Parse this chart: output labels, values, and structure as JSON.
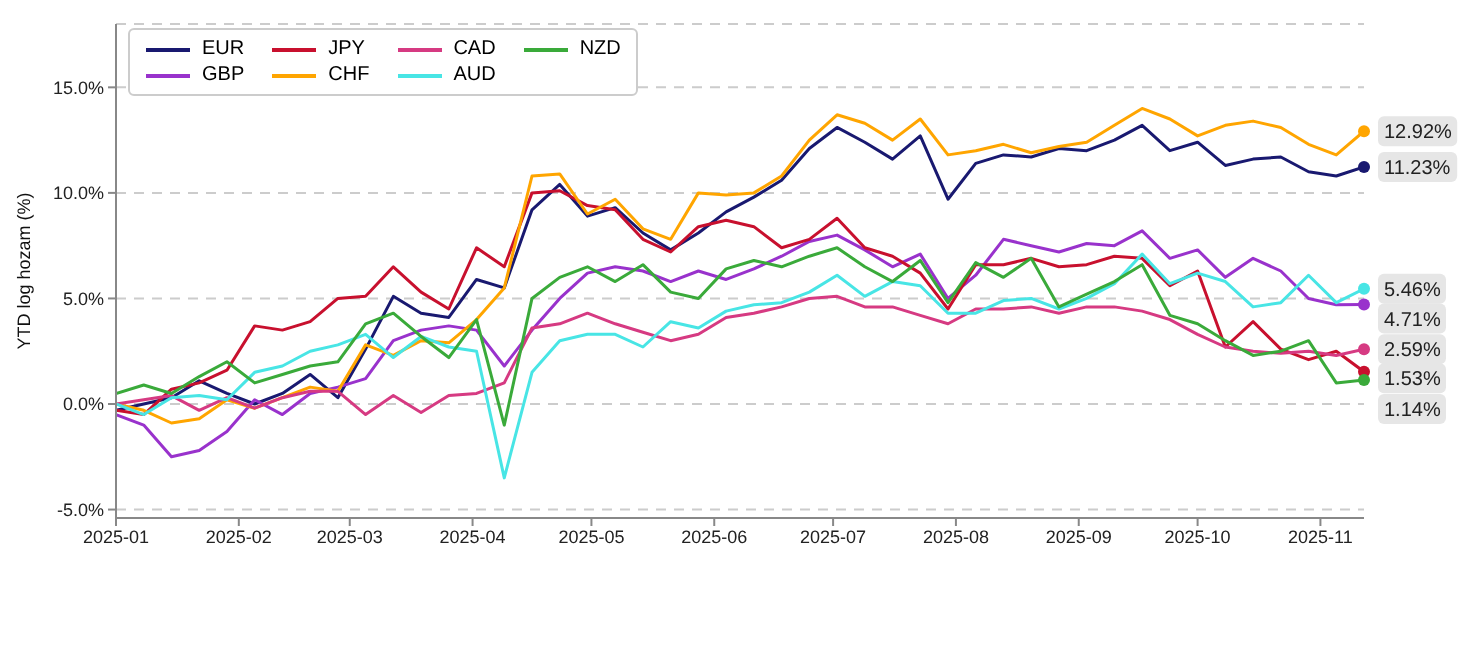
{
  "chart_data": {
    "type": "line",
    "ylabel": "YTD log hozam (%)",
    "x": [
      "2025-01-01",
      "2025-01-08",
      "2025-01-15",
      "2025-01-22",
      "2025-01-29",
      "2025-02-05",
      "2025-02-12",
      "2025-02-19",
      "2025-02-26",
      "2025-03-05",
      "2025-03-12",
      "2025-03-19",
      "2025-03-26",
      "2025-04-02",
      "2025-04-09",
      "2025-04-16",
      "2025-04-23",
      "2025-04-30",
      "2025-05-07",
      "2025-05-14",
      "2025-05-21",
      "2025-05-28",
      "2025-06-04",
      "2025-06-11",
      "2025-06-18",
      "2025-06-25",
      "2025-07-02",
      "2025-07-09",
      "2025-07-16",
      "2025-07-23",
      "2025-07-30",
      "2025-08-06",
      "2025-08-13",
      "2025-08-20",
      "2025-08-27",
      "2025-09-03",
      "2025-09-10",
      "2025-09-17",
      "2025-09-24",
      "2025-10-01",
      "2025-10-08",
      "2025-10-15",
      "2025-10-22",
      "2025-10-29",
      "2025-11-05",
      "2025-11-12"
    ],
    "series": [
      {
        "name": "EUR",
        "color": "#191970",
        "values": [
          -0.3,
          0,
          0.3,
          1.1,
          0.5,
          0,
          0.5,
          1.4,
          0.3,
          2.6,
          5.1,
          4.3,
          4.1,
          5.9,
          5.5,
          9.2,
          10.4,
          8.9,
          9.3,
          8.1,
          7.3,
          8.1,
          9.1,
          9.8,
          10.6,
          12.1,
          13.1,
          12.4,
          11.6,
          12.7,
          9.7,
          11.4,
          11.8,
          11.7,
          12.1,
          12.0,
          12.5,
          13.2,
          12.0,
          12.4,
          11.3,
          11.6,
          11.7,
          11.0,
          10.8,
          11.23
        ],
        "value_labels": [
          null,
          null,
          null,
          null,
          null,
          null,
          null,
          null,
          null,
          null,
          null,
          null,
          null,
          null,
          null,
          null,
          null,
          null,
          null,
          null,
          null,
          null,
          null,
          null,
          null,
          null,
          null,
          null,
          null,
          null,
          null,
          null,
          null,
          null,
          null,
          null,
          null,
          null,
          null,
          null,
          null,
          null,
          null,
          null,
          null,
          "11.23%"
        ]
      },
      {
        "name": "GBP",
        "color": "#9932cc",
        "values": [
          -0.5,
          -1.0,
          -2.5,
          -2.2,
          -1.3,
          0.2,
          -0.5,
          0.5,
          0.8,
          1.2,
          3.0,
          3.5,
          3.7,
          3.5,
          1.8,
          3.5,
          5.0,
          6.2,
          6.5,
          6.3,
          5.8,
          6.3,
          5.9,
          6.4,
          7.0,
          7.7,
          8.0,
          7.3,
          6.5,
          7.1,
          5.0,
          6.1,
          7.8,
          7.5,
          7.2,
          7.6,
          7.5,
          8.2,
          6.9,
          7.3,
          6.0,
          6.9,
          6.3,
          5.0,
          4.7,
          4.71
        ],
        "value_labels": [
          null,
          null,
          null,
          null,
          null,
          null,
          null,
          null,
          null,
          null,
          null,
          null,
          null,
          null,
          null,
          null,
          null,
          null,
          null,
          null,
          null,
          null,
          null,
          null,
          null,
          null,
          null,
          null,
          null,
          null,
          null,
          null,
          null,
          null,
          null,
          null,
          null,
          null,
          null,
          null,
          null,
          null,
          null,
          null,
          null,
          "4.71%"
        ]
      },
      {
        "name": "JPY",
        "color": "#c8102e",
        "values": [
          -0.3,
          -0.5,
          0.7,
          1.0,
          1.6,
          3.7,
          3.5,
          3.9,
          5.0,
          5.1,
          6.5,
          5.3,
          4.5,
          7.4,
          6.5,
          10.0,
          10.1,
          9.4,
          9.2,
          7.8,
          7.2,
          8.4,
          8.7,
          8.4,
          7.4,
          7.8,
          8.8,
          7.4,
          7.0,
          6.2,
          4.5,
          6.6,
          6.6,
          6.9,
          6.5,
          6.6,
          7.0,
          6.9,
          5.6,
          6.3,
          2.7,
          3.9,
          2.6,
          2.1,
          2.5,
          1.53
        ],
        "value_labels": [
          null,
          null,
          null,
          null,
          null,
          null,
          null,
          null,
          null,
          null,
          null,
          null,
          null,
          null,
          null,
          null,
          null,
          null,
          null,
          null,
          null,
          null,
          null,
          null,
          null,
          null,
          null,
          null,
          null,
          null,
          null,
          null,
          null,
          null,
          null,
          null,
          null,
          null,
          null,
          null,
          null,
          null,
          null,
          null,
          null,
          "1.53%"
        ]
      },
      {
        "name": "CHF",
        "color": "#ffa500",
        "values": [
          0,
          -0.3,
          -0.9,
          -0.7,
          0.2,
          -0.2,
          0.3,
          0.8,
          0.6,
          2.8,
          2.3,
          3.0,
          2.9,
          4.0,
          5.5,
          10.8,
          10.9,
          9.0,
          9.7,
          8.3,
          7.8,
          10.0,
          9.9,
          10.0,
          10.8,
          12.5,
          13.7,
          13.3,
          12.5,
          13.5,
          11.8,
          12.0,
          12.3,
          11.9,
          12.2,
          12.4,
          13.2,
          14.0,
          13.5,
          12.7,
          13.2,
          13.4,
          13.1,
          12.3,
          11.8,
          12.92
        ],
        "value_labels": [
          null,
          null,
          null,
          null,
          null,
          null,
          null,
          null,
          null,
          null,
          null,
          null,
          null,
          null,
          null,
          null,
          null,
          null,
          null,
          null,
          null,
          null,
          null,
          null,
          null,
          null,
          null,
          null,
          null,
          null,
          null,
          null,
          null,
          null,
          null,
          null,
          null,
          null,
          null,
          null,
          null,
          null,
          null,
          null,
          null,
          "12.92%"
        ]
      },
      {
        "name": "CAD",
        "color": "#d63a82",
        "values": [
          0,
          0.2,
          0.4,
          -0.3,
          0.3,
          -0.2,
          0.3,
          0.6,
          0.6,
          -0.5,
          0.4,
          -0.4,
          0.4,
          0.5,
          1.0,
          3.6,
          3.8,
          4.3,
          3.8,
          3.4,
          3.0,
          3.3,
          4.1,
          4.3,
          4.6,
          5.0,
          5.1,
          4.6,
          4.6,
          4.2,
          3.8,
          4.5,
          4.5,
          4.6,
          4.3,
          4.6,
          4.6,
          4.4,
          4.0,
          3.3,
          2.7,
          2.5,
          2.4,
          2.5,
          2.3,
          2.59
        ],
        "value_labels": [
          null,
          null,
          null,
          null,
          null,
          null,
          null,
          null,
          null,
          null,
          null,
          null,
          null,
          null,
          null,
          null,
          null,
          null,
          null,
          null,
          null,
          null,
          null,
          null,
          null,
          null,
          null,
          null,
          null,
          null,
          null,
          null,
          null,
          null,
          null,
          null,
          null,
          null,
          null,
          null,
          null,
          null,
          null,
          null,
          null,
          "2.59%"
        ]
      },
      {
        "name": "AUD",
        "color": "#48e5e5",
        "values": [
          0,
          -0.5,
          0.3,
          0.4,
          0.2,
          1.5,
          1.8,
          2.5,
          2.8,
          3.3,
          2.2,
          3.2,
          2.7,
          2.5,
          -3.5,
          1.5,
          3.0,
          3.3,
          3.3,
          2.7,
          3.9,
          3.6,
          4.4,
          4.7,
          4.8,
          5.3,
          6.1,
          5.1,
          5.8,
          5.6,
          4.3,
          4.3,
          4.9,
          5.0,
          4.5,
          5.0,
          5.7,
          7.1,
          5.7,
          6.2,
          5.8,
          4.6,
          4.8,
          6.1,
          4.8,
          5.46
        ],
        "value_labels": [
          null,
          null,
          null,
          null,
          null,
          null,
          null,
          null,
          null,
          null,
          null,
          null,
          null,
          null,
          null,
          null,
          null,
          null,
          null,
          null,
          null,
          null,
          null,
          null,
          null,
          null,
          null,
          null,
          null,
          null,
          null,
          null,
          null,
          null,
          null,
          null,
          null,
          null,
          null,
          null,
          null,
          null,
          null,
          null,
          null,
          "5.46%"
        ]
      },
      {
        "name": "NZD",
        "color": "#3aaa3a",
        "values": [
          0.5,
          0.9,
          0.5,
          1.3,
          2.0,
          1.0,
          1.4,
          1.8,
          2.0,
          3.8,
          4.3,
          3.2,
          2.2,
          4.0,
          -1.0,
          5.0,
          6.0,
          6.5,
          5.8,
          6.6,
          5.3,
          5.0,
          6.4,
          6.8,
          6.5,
          7.0,
          7.4,
          6.5,
          5.8,
          6.8,
          4.8,
          6.7,
          6.0,
          6.9,
          4.6,
          5.2,
          5.8,
          6.6,
          4.2,
          3.8,
          3.0,
          2.3,
          2.5,
          3.0,
          1.0,
          1.14
        ],
        "value_labels": [
          null,
          null,
          null,
          null,
          null,
          null,
          null,
          null,
          null,
          null,
          null,
          null,
          null,
          null,
          null,
          null,
          null,
          null,
          null,
          null,
          null,
          null,
          null,
          null,
          null,
          null,
          null,
          null,
          null,
          null,
          null,
          null,
          null,
          null,
          null,
          null,
          null,
          null,
          null,
          null,
          null,
          null,
          null,
          null,
          null,
          "1.14%"
        ]
      }
    ],
    "xlim": [
      "2025-01-01",
      "2025-11-12"
    ],
    "xticks": [
      "2025-01",
      "2025-02",
      "2025-03",
      "2025-04",
      "2025-05",
      "2025-06",
      "2025-07",
      "2025-08",
      "2025-09",
      "2025-10",
      "2025-11"
    ],
    "ylim": [
      -5.4,
      18
    ],
    "yticks": [
      {
        "value": -5,
        "label": "-5.0%"
      },
      {
        "value": 0,
        "label": "0.0%"
      },
      {
        "value": 5,
        "label": "5.0%"
      },
      {
        "value": 10,
        "label": "10.0%"
      },
      {
        "value": 15,
        "label": "15.0%"
      }
    ],
    "grid": "y",
    "legend": "top left",
    "line_style": "solid",
    "marker": "none"
  }
}
